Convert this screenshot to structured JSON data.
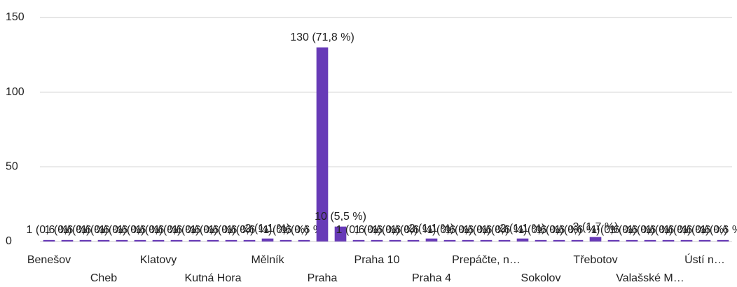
{
  "chart_data": {
    "type": "bar",
    "categories": [
      "Benešov",
      null,
      null,
      "Cheb",
      null,
      null,
      "Klatovy",
      null,
      null,
      "Kutná Hora",
      null,
      null,
      "Mělník",
      null,
      null,
      "Praha",
      null,
      null,
      "Praha 10",
      null,
      null,
      "Praha 4",
      null,
      null,
      "Prepáčte, n…",
      null,
      null,
      "Sokolov",
      null,
      null,
      "Třebotov",
      null,
      null,
      "Valašské M…",
      null,
      null,
      "Ústí n…",
      null
    ],
    "values": [
      1,
      1,
      1,
      1,
      1,
      1,
      1,
      1,
      1,
      1,
      1,
      1,
      2,
      1,
      1,
      130,
      10,
      1,
      1,
      1,
      1,
      2,
      1,
      1,
      1,
      1,
      2,
      1,
      1,
      1,
      3,
      1,
      1,
      1,
      1,
      1,
      1,
      1
    ],
    "value_labels": [
      "1 (0,6 %)",
      "1 (0,6 %)",
      "1 (0,6 %)",
      "1 (0,6 %)",
      "1 (0,6 %)",
      "1 (0,6 %)",
      "1 (0,6 %)",
      "1 (0,6 %)",
      "1 (0,6 %)",
      "1 (0,6 %)",
      "1 (0,6 %)",
      "1 (0,6 %)",
      "2 (1,1 %)",
      "1 (0,6 %)",
      "1 (0,6 %)",
      "130 (71,8 %)",
      "10 (5,5 %)",
      "1 (0,6 %)",
      "1 (0,6 %)",
      "1 (0,6 %)",
      "1 (0,6 %)",
      "2 (1,1 %)",
      "1 (0,6 %)",
      "1 (0,6 %)",
      "1 (0,6 %)",
      "1 (0,6 %)",
      "2 (1,1 %)",
      "1 (0,6 %)",
      "1 (0,6 %)",
      "1 (0,6 %)",
      "3 (1,7 %)",
      "1 (0,6 %)",
      "1 (0,6 %)",
      "1 (0,6 %)",
      "1 (0,6 %)",
      "1 (0,6 %)",
      "1 (0,6 %)",
      "1 (0,6 %)"
    ],
    "color": "#673ab7",
    "ylim": [
      0,
      150
    ],
    "yticks": [
      0,
      50,
      100,
      150
    ],
    "grid": true
  }
}
